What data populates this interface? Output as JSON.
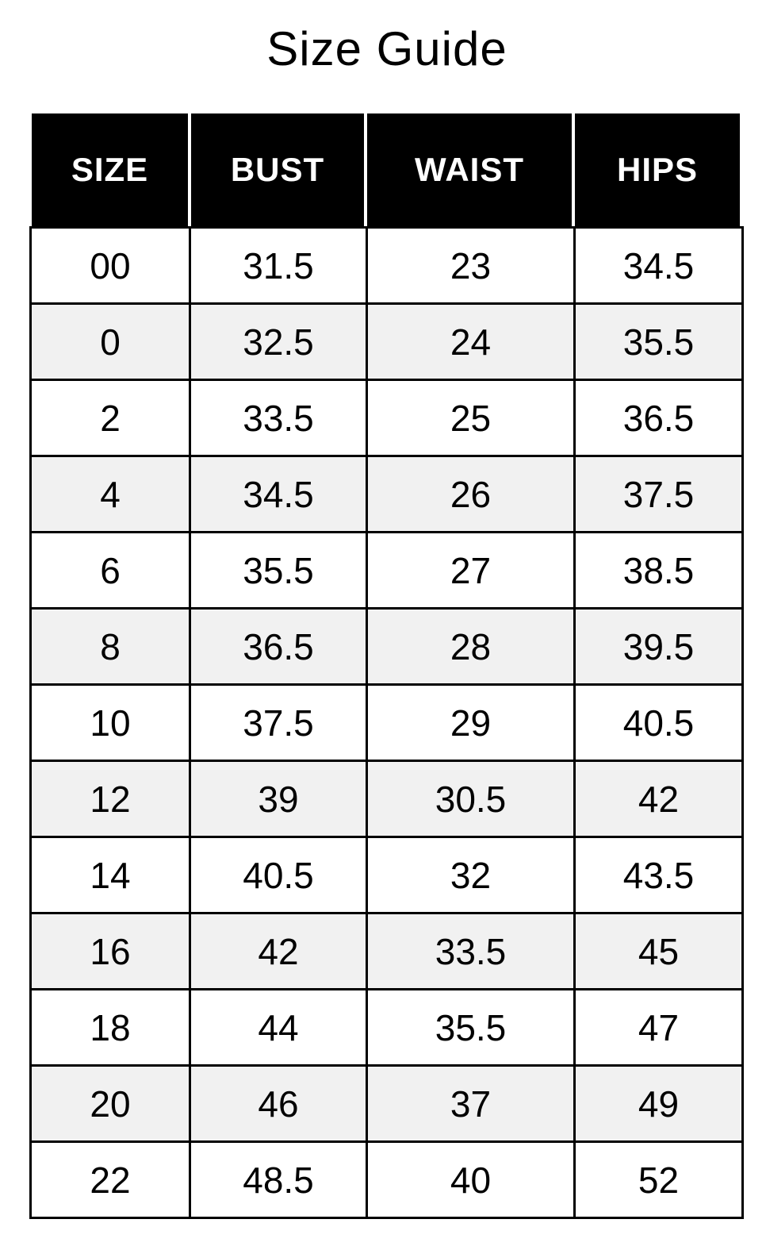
{
  "title": "Size Guide",
  "headers": [
    "SIZE",
    "BUST",
    "WAIST",
    "HIPS"
  ],
  "rows": [
    [
      "00",
      "31.5",
      "23",
      "34.5"
    ],
    [
      "0",
      "32.5",
      "24",
      "35.5"
    ],
    [
      "2",
      "33.5",
      "25",
      "36.5"
    ],
    [
      "4",
      "34.5",
      "26",
      "37.5"
    ],
    [
      "6",
      "35.5",
      "27",
      "38.5"
    ],
    [
      "8",
      "36.5",
      "28",
      "39.5"
    ],
    [
      "10",
      "37.5",
      "29",
      "40.5"
    ],
    [
      "12",
      "39",
      "30.5",
      "42"
    ],
    [
      "14",
      "40.5",
      "32",
      "43.5"
    ],
    [
      "16",
      "42",
      "33.5",
      "45"
    ],
    [
      "18",
      "44",
      "35.5",
      "47"
    ],
    [
      "20",
      "46",
      "37",
      "49"
    ],
    [
      "22",
      "48.5",
      "40",
      "52"
    ]
  ],
  "colors": {
    "header_bg": "#000000",
    "header_text": "#ffffff",
    "alt_row_bg": "#f1f1f1",
    "border": "#000000"
  }
}
